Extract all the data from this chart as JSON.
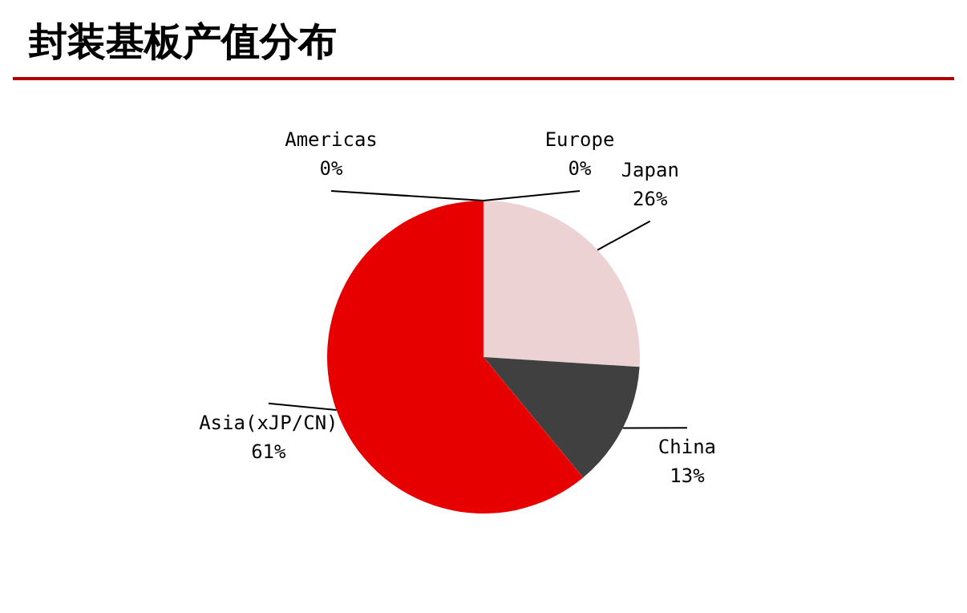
{
  "chart_data": {
    "type": "pie",
    "title": "封装基板产值分布",
    "categories": [
      "Americas",
      "Europe",
      "Japan",
      "China",
      "Asia(xJP/CN)"
    ],
    "values": [
      0,
      0,
      26,
      13,
      61
    ],
    "value_labels": [
      "0%",
      "0%",
      "26%",
      "13%",
      "61%"
    ],
    "colors": [
      "#b00000",
      "#d9b3b3",
      "#ecd2d2",
      "#404040",
      "#e60000"
    ]
  }
}
